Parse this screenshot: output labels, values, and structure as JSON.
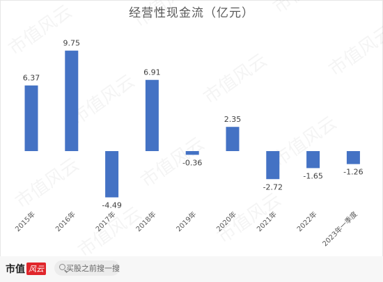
{
  "chart_data": {
    "type": "bar",
    "title": "经营性现金流（亿元）",
    "categories": [
      "2015年",
      "2016年",
      "2017年",
      "2018年",
      "2019年",
      "2020年",
      "2021年",
      "2022年",
      "2023年一季度"
    ],
    "values": [
      6.37,
      9.75,
      -4.49,
      6.91,
      -0.36,
      2.35,
      -2.72,
      -1.65,
      -1.26
    ],
    "data_labels": [
      "6.37",
      "9.75",
      "-4.49",
      "6.91",
      "-0.36",
      "2.35",
      "-2.72",
      "-1.65",
      "-1.26"
    ],
    "ylim": [
      -5.2,
      11.2
    ],
    "grid": false,
    "legend": "none",
    "bar_color": "#4472c4"
  },
  "watermark": "市值风云",
  "footer": {
    "logo_text": "市值",
    "logo_mark": "风云",
    "search_placeholder": "买股之前搜一搜",
    "search_icon": "search-icon"
  }
}
